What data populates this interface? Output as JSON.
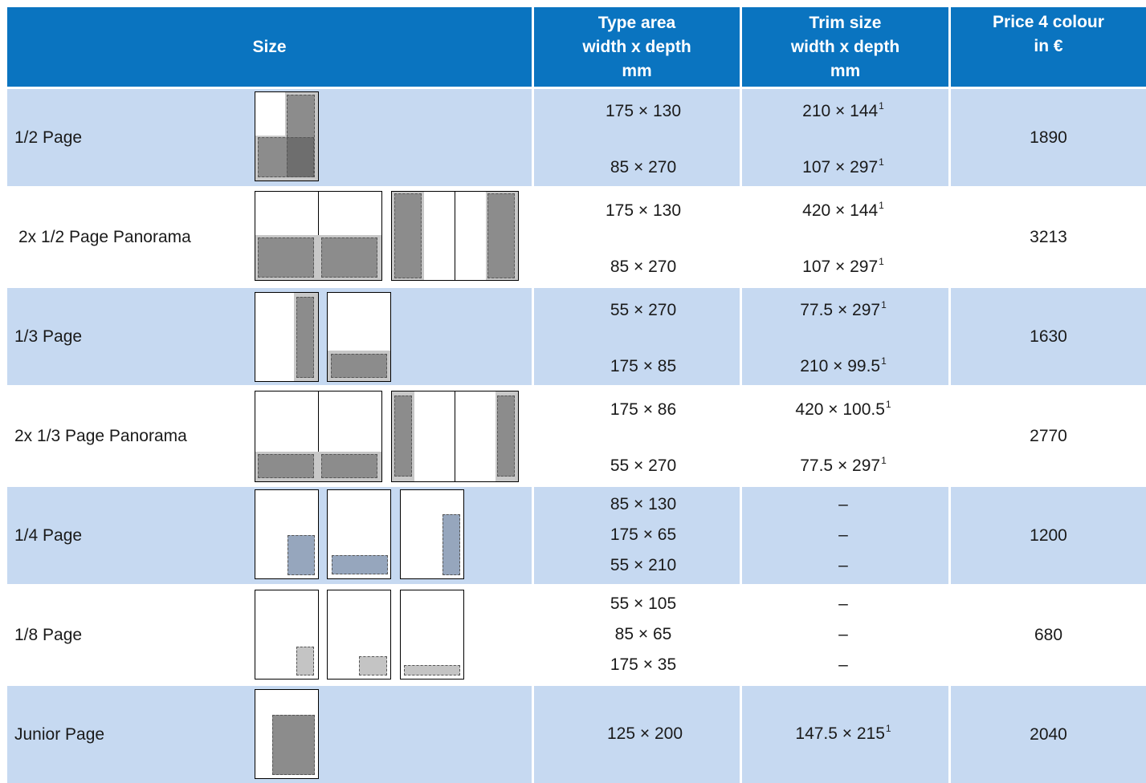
{
  "columns": {
    "size": "Size",
    "type_area": [
      "Type area",
      "width x depth",
      "mm"
    ],
    "trim_size": [
      "Trim size",
      "width x depth",
      "mm"
    ],
    "price": [
      "Price 4 colour",
      "in €"
    ]
  },
  "rows": [
    {
      "label": "1/2 Page",
      "type_area": [
        "175 × 130",
        "85 × 270"
      ],
      "trim": [
        {
          "v": "210 × 144",
          "sup": "1"
        },
        {
          "v": "107 × 297",
          "sup": "1"
        }
      ],
      "price": "1890"
    },
    {
      "label": "2x 1/2 Page Panorama",
      "type_area": [
        "175 × 130",
        "85 × 270"
      ],
      "trim": [
        {
          "v": "420 × 144",
          "sup": "1"
        },
        {
          "v": "107 × 297",
          "sup": "1"
        }
      ],
      "price": "3213"
    },
    {
      "label": "1/3 Page",
      "type_area": [
        "55 × 270",
        "175 × 85"
      ],
      "trim": [
        {
          "v": "77.5 × 297",
          "sup": "1"
        },
        {
          "v": "210 × 99.5",
          "sup": "1"
        }
      ],
      "price": "1630"
    },
    {
      "label": "2x 1/3 Page Panorama",
      "type_area": [
        "175 × 86",
        "55 × 270"
      ],
      "trim": [
        {
          "v": "420 × 100.5",
          "sup": "1"
        },
        {
          "v": "77.5 × 297",
          "sup": "1"
        }
      ],
      "price": "2770"
    },
    {
      "label": "1/4 Page",
      "type_area": [
        "85 × 130",
        "175 × 65",
        "55 × 210"
      ],
      "trim": [
        {
          "v": "–",
          "sup": ""
        },
        {
          "v": "–",
          "sup": ""
        },
        {
          "v": "–",
          "sup": ""
        }
      ],
      "price": "1200"
    },
    {
      "label": "1/8 Page",
      "type_area": [
        "55 × 105",
        "85 × 65",
        "175 × 35"
      ],
      "trim": [
        {
          "v": "–",
          "sup": ""
        },
        {
          "v": "–",
          "sup": ""
        },
        {
          "v": "–",
          "sup": ""
        }
      ],
      "price": "680"
    },
    {
      "label": "Junior Page",
      "type_area": [
        "125 × 200"
      ],
      "trim": [
        {
          "v": "147.5 × 215",
          "sup": "1"
        }
      ],
      "price": "2040"
    }
  ],
  "colors": {
    "header": "#0a74c0",
    "row_shaded": "#c6d9f1",
    "row_plain": "#ffffff"
  }
}
